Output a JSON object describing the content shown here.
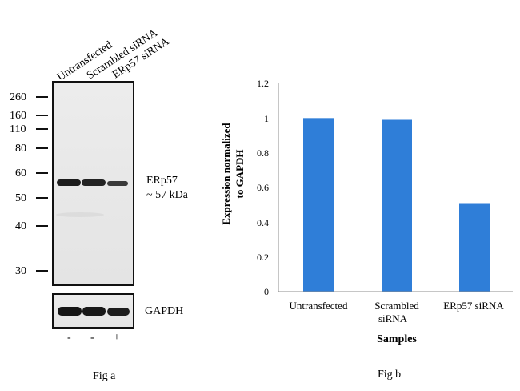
{
  "figure_a": {
    "caption": "Fig a",
    "lane_labels": [
      "Untransfected",
      "Scrambled siRNA",
      "ERp57 siRNA"
    ],
    "markers": [
      "260",
      "160",
      "110",
      "80",
      "60",
      "50",
      "40",
      "30"
    ],
    "target_label_line1": "ERp57",
    "target_label_line2": "~ 57 kDa",
    "loading_control_label": "GAPDH",
    "treatment_signs": [
      "-",
      "-",
      "+"
    ]
  },
  "figure_b": {
    "caption": "Fig b"
  },
  "chart_data": {
    "type": "bar",
    "categories": [
      "Untransfected",
      "Scrambled siRNA",
      "ERp57 siRNA"
    ],
    "category_label_lines": [
      [
        "Untransfected"
      ],
      [
        "Scrambled",
        "siRNA"
      ],
      [
        "ERp57 siRNA"
      ]
    ],
    "values": [
      1.0,
      0.99,
      0.51
    ],
    "title": "",
    "xlabel": "Samples",
    "ylabel_lines": [
      "Expression normalized",
      "to GAPDH"
    ],
    "ylim": [
      0,
      1.2
    ],
    "yticks": [
      "0",
      "0.2",
      "0.4",
      "0.6",
      "0.8",
      "1",
      "1.2"
    ],
    "bar_color": "#2F7ED8",
    "grid": false,
    "legend": "none"
  }
}
